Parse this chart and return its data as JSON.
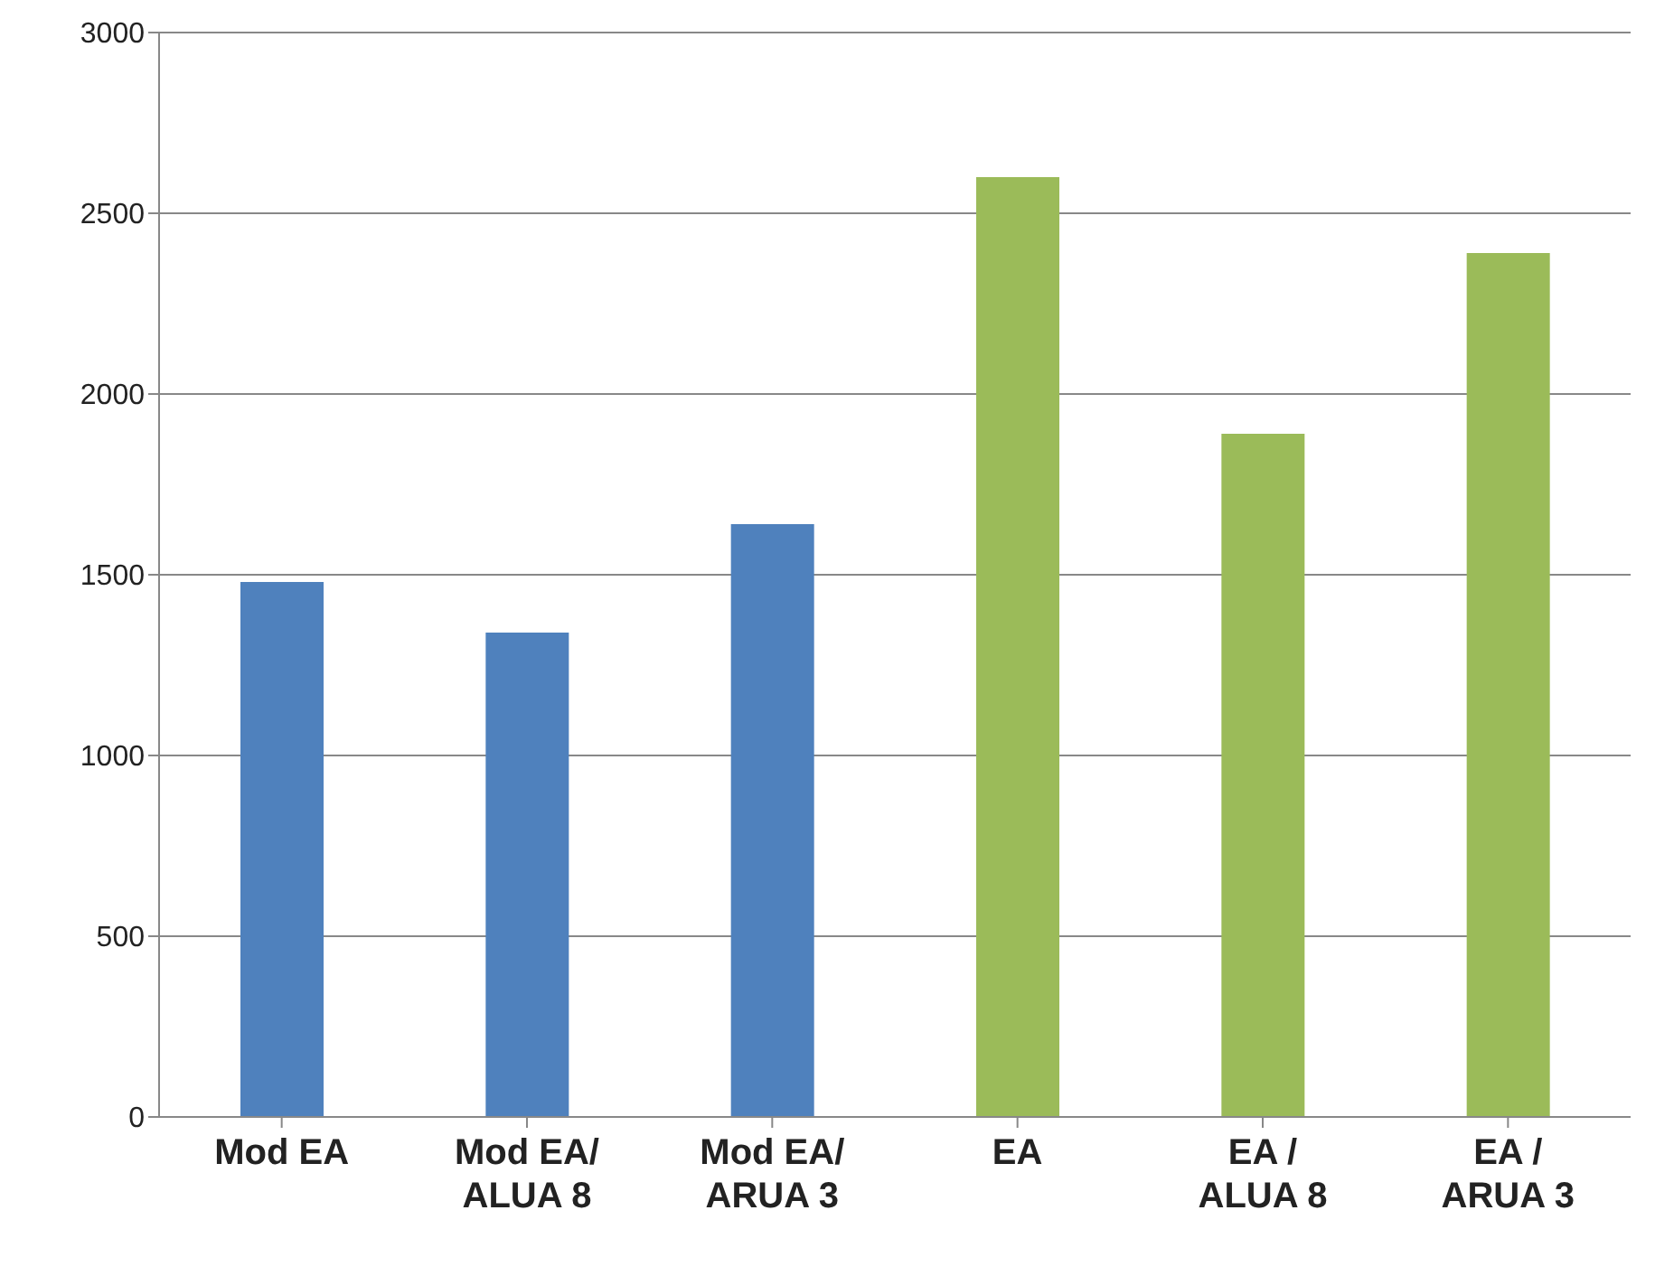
{
  "chart_data": {
    "type": "bar",
    "categories": [
      "Mod EA",
      "Mod EA/\nALUA 8",
      "Mod EA/\nARUA 3",
      "EA",
      "EA /\nALUA 8",
      "EA /\nARUA 3"
    ],
    "values": [
      1480,
      1340,
      1640,
      2600,
      1890,
      2390
    ],
    "colors": [
      "#4f81bd",
      "#4f81bd",
      "#4f81bd",
      "#9bbb59",
      "#9bbb59",
      "#9bbb59"
    ],
    "ylim": [
      0,
      3000
    ],
    "yticks": [
      0,
      500,
      1000,
      1500,
      2000,
      2500,
      3000
    ],
    "grid": "y"
  }
}
